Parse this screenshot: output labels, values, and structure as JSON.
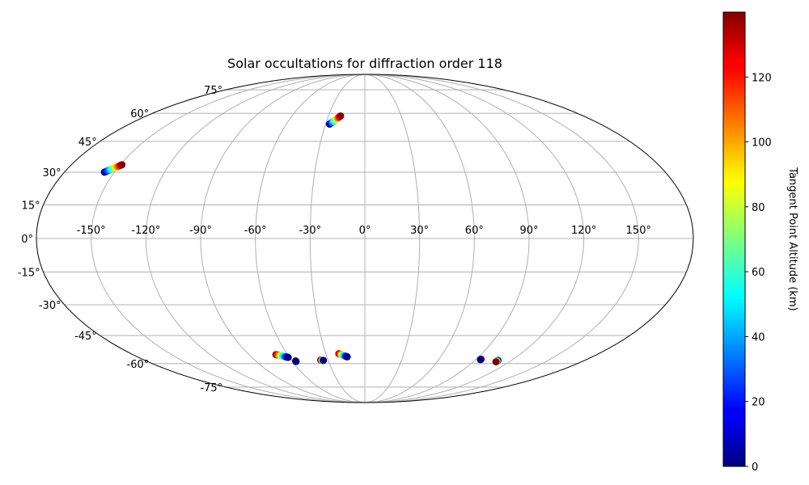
{
  "chart_data": {
    "type": "scatter",
    "projection": "mollweide",
    "title": "Solar occultations for diffraction order 118",
    "xlabel": "",
    "ylabel": "",
    "x_ticks": [
      -150,
      -120,
      -90,
      -60,
      -30,
      0,
      30,
      60,
      90,
      120,
      150
    ],
    "x_tick_labels": [
      "-150°",
      "-120°",
      "-90°",
      "-60°",
      "-30°",
      "0°",
      "30°",
      "60°",
      "90°",
      "120°",
      "150°"
    ],
    "y_ticks": [
      -75,
      -60,
      -45,
      -30,
      -15,
      0,
      15,
      30,
      45,
      60,
      75
    ],
    "y_tick_labels": [
      "-75°",
      "-60°",
      "-45°",
      "-30°",
      "-15°",
      "0°",
      "15°",
      "30°",
      "45°",
      "60°",
      "75°"
    ],
    "grid": true,
    "colormap": "jet",
    "colorbar": {
      "label": "Tangent Point Altitude (km)",
      "range": [
        0,
        140
      ],
      "ticks": [
        0,
        20,
        40,
        60,
        80,
        100,
        120
      ],
      "tick_labels": [
        "0",
        "20",
        "40",
        "60",
        "80",
        "100",
        "120"
      ]
    },
    "groups": [
      {
        "lon_start": -156,
        "lat_start": 30.0,
        "lon_end": -149,
        "lat_end": 33.5
      },
      {
        "lon_start": -27,
        "lat_start": 54.0,
        "lon_end": -20,
        "lat_end": 58.5,
        "high_first": false
      },
      {
        "lon_start": -69,
        "lat_start": -55.0,
        "lon_end": -61,
        "lat_end": -56.5,
        "high_first": true
      },
      {
        "lon_start": -57,
        "lat_start": -58.5,
        "lon_end": -57,
        "lat_end": -58.8,
        "high_first": true,
        "n": 2
      },
      {
        "lon_start": -36,
        "lat_start": -58.0,
        "lon_end": -34,
        "lat_end": -58.2,
        "high_first": true,
        "n": 3
      },
      {
        "lon_start": -20,
        "lat_start": -54.5,
        "lon_end": -14,
        "lat_end": -56.2,
        "high_first": true
      },
      {
        "lon_start": 94,
        "lat_start": -57.5,
        "lon_end": 94,
        "lat_end": -57.8,
        "high_first": true,
        "n": 2
      },
      {
        "lon_start": 109,
        "lat_start": -58.2,
        "lon_end": 109,
        "lat_end": -59.0,
        "high_first": false,
        "n": 3
      }
    ]
  }
}
